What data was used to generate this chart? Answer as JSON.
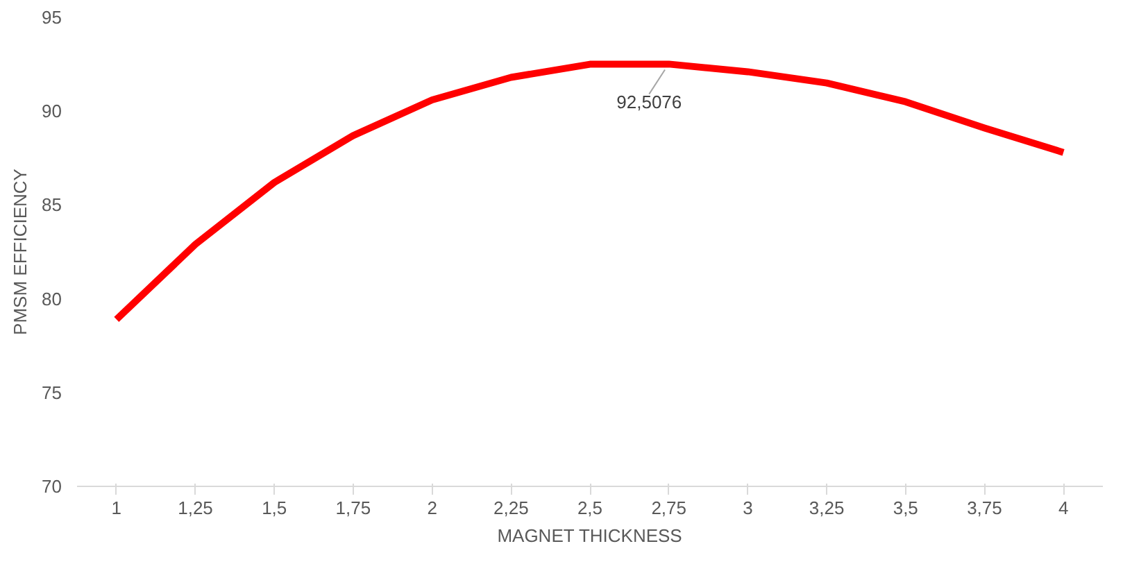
{
  "chart_data": {
    "type": "line",
    "xlabel": "MAGNET THICKNESS",
    "ylabel": "PMSM EFFICIENCY",
    "categories": [
      "1",
      "1,25",
      "1,5",
      "1,75",
      "2",
      "2,25",
      "2,5",
      "2,75",
      "3",
      "3,25",
      "3,5",
      "3,75",
      "4"
    ],
    "series": [
      {
        "color": "#ff0000",
        "values": [
          78.9,
          82.9,
          86.2,
          88.7,
          90.6,
          91.8,
          92.5,
          92.5076,
          92.1,
          91.5,
          90.5,
          89.1,
          87.8
        ],
        "value_labels": [
          null,
          null,
          null,
          null,
          null,
          null,
          null,
          "92,5076",
          null,
          null,
          null,
          null,
          null
        ]
      }
    ],
    "ylim": [
      70,
      95
    ],
    "yticks": [
      70,
      75,
      80,
      85,
      90,
      95
    ],
    "grid": false,
    "marker": "none",
    "line_style": "solid"
  }
}
